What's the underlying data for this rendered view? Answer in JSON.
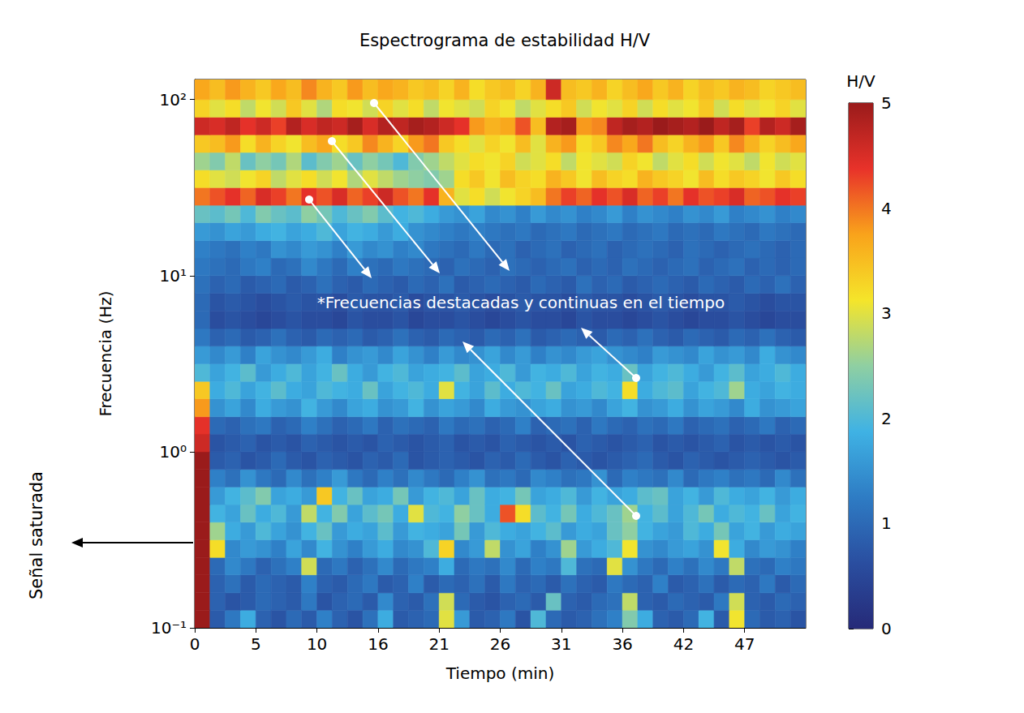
{
  "chart_data": {
    "type": "heatmap",
    "title": "Espectrograma de estabilidad H/V",
    "x_label": "Tiempo (min)",
    "y_label": "Frecuencia (Hz)",
    "log": "y",
    "grid": false,
    "xlim": [
      0,
      52
    ],
    "xticks": [
      0,
      {
        "value": 5.2,
        "label": "5"
      },
      {
        "value": 10.4,
        "label": "10"
      },
      {
        "value": 15.6,
        "label": "16"
      },
      {
        "value": 20.8,
        "label": "21"
      },
      26,
      {
        "value": 31.2,
        "label": "31"
      },
      {
        "value": 36.4,
        "label": "36"
      },
      {
        "value": 41.6,
        "label": "42"
      },
      {
        "value": 46.8,
        "label": "47"
      }
    ],
    "ylim": [
      0.1,
      130
    ],
    "yticks": [
      {
        "value": 0.1,
        "label": "10⁻¹"
      },
      {
        "value": 1,
        "label": "10⁰"
      },
      {
        "value": 10,
        "label": "10¹"
      },
      {
        "value": 100,
        "label": "10²"
      }
    ],
    "time_bins": [
      0,
      1.3,
      2.6,
      3.9,
      5.2,
      6.5,
      7.8,
      9.1,
      10.4,
      11.7,
      13,
      14.3,
      15.6,
      16.9,
      18.2,
      19.5,
      20.8,
      22.1,
      23.4,
      24.7,
      26,
      27.3,
      28.6,
      29.9,
      31.2,
      32.5,
      33.8,
      35.1,
      36.4,
      37.7,
      39,
      40.3,
      41.6,
      42.9,
      44.2,
      45.5,
      46.8,
      48.1,
      49.4,
      50.7,
      52
    ],
    "freq_bins": [
      0.1,
      0.126,
      0.158,
      0.2,
      0.251,
      0.316,
      0.398,
      0.501,
      0.631,
      0.794,
      1,
      1.26,
      1.58,
      2,
      2.51,
      3.16,
      3.98,
      5.01,
      6.31,
      7.94,
      10,
      12.6,
      15.8,
      20,
      25.1,
      31.6,
      39.8,
      50.1,
      63.1,
      79.4,
      100,
      130
    ],
    "cells": [
      [
        5,
        0.8,
        1.2,
        1.8,
        0.9,
        0.7,
        1.0,
        0.8,
        1.3,
        0.9,
        0.7,
        1.1,
        1.8,
        0.8,
        0.9,
        1.0,
        3.0,
        1.6,
        0.8,
        0.9,
        1.2,
        0.7,
        2.0,
        1.0,
        0.8,
        0.9,
        1.1,
        1.3,
        2.4,
        1.8,
        0.9,
        0.8,
        1.0,
        1.9,
        0.8,
        3.1,
        1.0,
        0.8,
        0.9,
        0.7
      ],
      [
        5,
        0.9,
        0.7,
        0.8,
        1.0,
        0.9,
        0.8,
        1.2,
        0.7,
        0.9,
        1.0,
        0.8,
        1.4,
        0.9,
        0.8,
        1.1,
        2.9,
        1.0,
        0.8,
        0.7,
        0.9,
        1.0,
        0.8,
        2.2,
        0.9,
        0.8,
        1.0,
        1.1,
        2.8,
        0.9,
        0.8,
        1.0,
        0.9,
        0.8,
        1.2,
        2.9,
        0.9,
        0.8,
        1.0,
        0.9
      ],
      [
        5,
        0.9,
        1.1,
        0.8,
        1.0,
        0.9,
        0.8,
        1.3,
        0.9,
        0.8,
        1.0,
        1.2,
        0.8,
        0.9,
        1.3,
        0.8,
        1.0,
        0.9,
        1.1,
        0.8,
        1.2,
        0.9,
        1.0,
        0.8,
        1.1,
        0.9,
        0.8,
        1.2,
        1.0,
        0.9,
        1.3,
        0.8,
        0.9,
        1.1,
        0.8,
        1.0,
        0.9,
        1.2,
        0.8,
        1.0
      ],
      [
        5,
        1.0,
        1.4,
        1.2,
        0.9,
        1.1,
        1.3,
        2.9,
        1.0,
        1.2,
        0.9,
        1.1,
        1.4,
        1.0,
        1.2,
        1.3,
        1.8,
        1.0,
        1.2,
        1.1,
        1.4,
        1.0,
        1.3,
        1.2,
        2.0,
        1.1,
        1.0,
        3.0,
        1.5,
        1.2,
        1.0,
        1.3,
        1.1,
        1.4,
        1.2,
        2.8,
        1.1,
        1.0,
        1.3,
        1.2
      ],
      [
        5,
        3.2,
        1.4,
        1.6,
        1.5,
        1.3,
        1.7,
        1.4,
        1.9,
        1.5,
        1.3,
        1.6,
        1.8,
        1.4,
        1.5,
        2.0,
        3.3,
        1.4,
        1.6,
        2.8,
        1.5,
        1.7,
        1.3,
        1.5,
        2.6,
        1.6,
        1.8,
        2.0,
        3.1,
        1.5,
        1.4,
        1.6,
        1.7,
        1.5,
        3.1,
        1.8,
        1.4,
        1.6,
        1.5,
        1.3
      ],
      [
        5,
        2.6,
        1.8,
        1.6,
        2.0,
        1.7,
        1.5,
        1.9,
        2.2,
        1.6,
        1.8,
        1.7,
        2.1,
        1.6,
        1.9,
        1.8,
        1.7,
        2.3,
        1.6,
        2.0,
        1.8,
        1.7,
        1.9,
        2.1,
        1.6,
        1.8,
        1.7,
        2.2,
        2.5,
        1.9,
        1.7,
        1.6,
        2.0,
        1.8,
        2.3,
        1.7,
        1.9,
        1.6,
        1.8,
        1.7
      ],
      [
        5,
        1.9,
        1.7,
        2.2,
        1.8,
        2.0,
        1.6,
        2.8,
        1.9,
        2.4,
        1.7,
        2.1,
        2.3,
        1.8,
        3.0,
        2.0,
        1.9,
        2.5,
        2.2,
        1.8,
        4.2,
        3.2,
        2.1,
        1.9,
        2.3,
        1.8,
        2.0,
        2.2,
        2.6,
        1.9,
        2.1,
        1.7,
        2.0,
        2.3,
        1.8,
        2.0,
        1.9,
        2.2,
        1.7,
        1.9
      ],
      [
        5,
        1.6,
        1.9,
        2.1,
        2.4,
        1.7,
        1.8,
        1.6,
        3.4,
        1.9,
        2.2,
        1.7,
        1.8,
        2.3,
        1.6,
        1.9,
        2.0,
        1.7,
        2.2,
        1.8,
        1.9,
        2.3,
        1.7,
        1.8,
        2.0,
        1.6,
        1.9,
        1.7,
        1.8,
        2.1,
        2.2,
        1.7,
        1.9,
        1.6,
        2.0,
        1.8,
        1.7,
        1.9,
        1.6,
        1.8
      ],
      [
        5,
        1.3,
        1.1,
        1.5,
        1.2,
        1.0,
        1.4,
        1.1,
        1.3,
        1.6,
        1.2,
        1.0,
        1.3,
        1.1,
        1.4,
        1.2,
        1.0,
        1.3,
        1.5,
        1.1,
        1.2,
        1.0,
        1.4,
        1.3,
        1.1,
        1.2,
        1.5,
        1.0,
        1.3,
        1.2,
        1.1,
        1.4,
        1.0,
        1.2,
        1.3,
        1.1,
        1.2,
        1.0,
        1.4,
        1.1
      ],
      [
        5,
        0.8,
        0.9,
        0.7,
        0.8,
        1.0,
        0.8,
        0.7,
        0.9,
        0.8,
        0.7,
        0.9,
        0.8,
        1.0,
        0.7,
        0.8,
        0.9,
        0.8,
        0.7,
        0.9,
        0.8,
        1.0,
        0.8,
        0.7,
        0.9,
        0.8,
        0.7,
        0.8,
        0.9,
        1.0,
        0.8,
        0.7,
        0.9,
        0.8,
        0.7,
        0.8,
        0.9,
        0.8,
        0.7,
        0.8
      ],
      [
        4.6,
        0.7,
        0.8,
        0.9,
        0.7,
        0.8,
        0.7,
        0.9,
        0.8,
        0.7,
        0.8,
        0.7,
        0.9,
        0.8,
        0.7,
        0.8,
        0.9,
        0.7,
        0.8,
        0.7,
        0.9,
        0.8,
        0.7,
        0.8,
        0.7,
        0.9,
        0.8,
        0.7,
        0.8,
        0.9,
        0.7,
        0.8,
        0.7,
        0.8,
        0.9,
        0.7,
        0.8,
        0.7,
        0.8,
        0.7
      ],
      [
        4.4,
        1.0,
        0.9,
        1.1,
        1.2,
        0.9,
        1.0,
        1.3,
        1.1,
        0.9,
        1.0,
        1.2,
        0.9,
        1.1,
        1.0,
        0.9,
        1.2,
        1.0,
        1.1,
        0.9,
        1.0,
        1.3,
        0.9,
        1.0,
        1.1,
        0.9,
        1.2,
        1.0,
        0.9,
        1.1,
        1.0,
        1.2,
        0.9,
        1.0,
        1.1,
        0.9,
        1.0,
        1.2,
        0.9,
        1.0
      ],
      [
        3.8,
        1.5,
        1.7,
        1.4,
        1.8,
        1.6,
        1.5,
        1.9,
        1.6,
        1.4,
        1.7,
        1.8,
        1.5,
        1.6,
        1.9,
        1.5,
        1.7,
        1.6,
        1.4,
        1.8,
        1.6,
        1.5,
        1.7,
        1.8,
        1.5,
        1.6,
        1.4,
        1.7,
        1.9,
        1.5,
        1.6,
        1.8,
        1.5,
        1.7,
        1.6,
        1.4,
        1.8,
        1.5,
        1.6,
        1.7
      ],
      [
        3.4,
        1.8,
        2.0,
        1.7,
        1.9,
        2.1,
        1.8,
        1.7,
        2.0,
        1.9,
        1.8,
        2.2,
        1.7,
        1.9,
        2.0,
        1.8,
        3.0,
        1.9,
        1.7,
        2.1,
        1.8,
        2.0,
        1.9,
        2.2,
        1.7,
        1.8,
        2.0,
        1.9,
        3.2,
        1.8,
        2.0,
        2.1,
        1.7,
        1.9,
        2.0,
        2.6,
        1.8,
        1.7,
        1.9,
        1.8
      ],
      [
        2.0,
        1.7,
        1.9,
        2.1,
        1.6,
        1.8,
        2.0,
        1.7,
        1.9,
        2.2,
        1.8,
        1.6,
        1.9,
        2.0,
        1.7,
        1.8,
        1.9,
        2.1,
        1.7,
        1.8,
        2.0,
        1.6,
        1.9,
        1.8,
        2.0,
        1.7,
        1.9,
        1.8,
        2.2,
        1.7,
        1.9,
        2.0,
        1.8,
        1.6,
        1.9,
        2.1,
        1.7,
        1.8,
        2.0,
        1.8
      ],
      [
        1.6,
        1.4,
        1.6,
        1.3,
        1.7,
        1.5,
        1.4,
        1.6,
        1.8,
        1.3,
        1.5,
        1.6,
        1.4,
        1.7,
        1.5,
        1.3,
        1.6,
        1.4,
        1.5,
        1.7,
        1.4,
        1.6,
        1.3,
        1.5,
        1.4,
        1.6,
        1.7,
        1.5,
        1.4,
        1.3,
        1.6,
        1.5,
        1.4,
        1.7,
        1.5,
        1.6,
        1.4,
        1.8,
        1.5,
        1.4
      ],
      [
        1.2,
        0.9,
        1.0,
        0.8,
        0.9,
        1.1,
        0.9,
        0.8,
        1.0,
        0.9,
        1.0,
        0.8,
        0.9,
        1.1,
        0.9,
        0.8,
        1.0,
        0.9,
        0.8,
        1.0,
        0.9,
        1.1,
        0.8,
        0.9,
        1.0,
        0.9,
        0.8,
        1.0,
        0.9,
        1.1,
        0.9,
        0.8,
        1.0,
        0.9,
        0.8,
        1.0,
        0.9,
        1.1,
        0.9,
        0.8
      ],
      [
        1.0,
        0.6,
        0.7,
        0.6,
        0.5,
        0.6,
        0.7,
        0.6,
        0.6,
        0.5,
        0.7,
        0.6,
        0.6,
        0.7,
        0.5,
        0.6,
        0.6,
        0.7,
        0.6,
        0.5,
        0.6,
        0.7,
        0.6,
        0.6,
        0.5,
        0.7,
        0.6,
        0.6,
        0.5,
        0.6,
        0.7,
        0.6,
        0.5,
        0.6,
        0.6,
        0.7,
        0.6,
        0.5,
        0.6,
        0.6
      ],
      [
        1.0,
        0.7,
        0.8,
        0.7,
        0.6,
        0.7,
        0.8,
        0.7,
        0.7,
        0.6,
        0.8,
        0.7,
        0.7,
        0.8,
        0.6,
        0.7,
        0.7,
        0.8,
        0.7,
        0.6,
        0.7,
        0.8,
        0.7,
        0.7,
        0.6,
        0.8,
        0.7,
        0.7,
        0.6,
        0.7,
        0.8,
        0.7,
        0.6,
        0.7,
        0.7,
        0.8,
        0.7,
        0.6,
        0.7,
        0.7
      ],
      [
        1.1,
        0.9,
        1.0,
        0.8,
        0.9,
        1.0,
        0.8,
        0.9,
        1.1,
        0.9,
        0.8,
        1.0,
        0.9,
        0.8,
        1.0,
        0.9,
        1.1,
        0.8,
        0.9,
        1.0,
        0.9,
        0.8,
        1.0,
        0.9,
        0.8,
        1.1,
        0.9,
        1.0,
        0.8,
        0.9,
        1.0,
        0.9,
        0.8,
        1.0,
        0.9,
        0.8,
        1.0,
        0.9,
        1.1,
        0.9
      ],
      [
        1.2,
        1.1,
        1.0,
        1.2,
        1.3,
        1.0,
        1.1,
        1.4,
        1.2,
        1.0,
        1.3,
        1.1,
        1.0,
        1.2,
        1.1,
        1.0,
        0.9,
        1.1,
        1.0,
        0.9,
        1.1,
        1.0,
        0.9,
        1.0,
        1.1,
        0.9,
        1.0,
        0.9,
        1.1,
        1.0,
        0.9,
        1.0,
        1.1,
        0.9,
        1.0,
        1.1,
        0.9,
        1.0,
        0.9,
        1.0
      ],
      [
        1.3,
        1.2,
        1.1,
        1.3,
        1.2,
        1.5,
        1.4,
        1.6,
        1.5,
        1.3,
        1.6,
        1.4,
        1.5,
        1.3,
        1.4,
        1.2,
        1.1,
        1.0,
        1.2,
        1.0,
        1.1,
        0.9,
        1.0,
        1.1,
        0.9,
        1.0,
        1.1,
        0.9,
        1.0,
        1.1,
        1.0,
        0.9,
        1.1,
        1.0,
        0.9,
        1.0,
        1.1,
        1.0,
        0.9,
        1.0
      ],
      [
        1.6,
        1.5,
        1.7,
        1.6,
        1.8,
        1.9,
        1.7,
        1.8,
        2.0,
        1.7,
        1.9,
        1.8,
        1.6,
        1.8,
        1.5,
        1.4,
        1.3,
        1.2,
        1.3,
        1.2,
        1.1,
        1.2,
        1.0,
        1.1,
        1.2,
        1.0,
        1.1,
        1.2,
        1.0,
        1.1,
        1.2,
        1.0,
        1.1,
        1.0,
        1.2,
        1.1,
        1.0,
        1.2,
        1.1,
        1.0
      ],
      [
        2.2,
        2.1,
        2.3,
        2.0,
        2.4,
        2.2,
        2.1,
        2.5,
        2.3,
        2.0,
        2.2,
        2.4,
        2.1,
        1.9,
        2.0,
        1.8,
        1.6,
        1.5,
        1.7,
        1.4,
        1.5,
        1.3,
        1.6,
        1.4,
        1.5,
        1.3,
        1.4,
        1.6,
        1.3,
        1.5,
        1.4,
        1.3,
        1.5,
        1.4,
        1.6,
        1.3,
        1.4,
        1.5,
        1.3,
        1.4
      ],
      [
        4.0,
        4.2,
        4.4,
        4.1,
        4.5,
        4.3,
        4.0,
        4.4,
        4.2,
        4.5,
        4.1,
        4.3,
        4.6,
        4.2,
        4.0,
        4.4,
        3.6,
        3.0,
        3.2,
        2.9,
        3.1,
        3.3,
        3.5,
        4.0,
        4.3,
        4.1,
        4.4,
        4.2,
        4.5,
        4.1,
        4.3,
        4.0,
        4.4,
        4.2,
        4.3,
        4.5,
        4.1,
        4.2,
        4.4,
        4.3
      ],
      [
        3.2,
        3.0,
        2.9,
        3.1,
        3.3,
        2.8,
        3.0,
        3.2,
        2.9,
        3.1,
        2.7,
        3.0,
        2.8,
        2.6,
        2.5,
        2.4,
        2.6,
        3.2,
        3.4,
        3.1,
        3.5,
        3.3,
        3.2,
        3.6,
        3.4,
        3.1,
        3.5,
        3.3,
        3.2,
        3.6,
        3.4,
        3.3,
        3.1,
        3.5,
        3.2,
        3.4,
        3.3,
        3.1,
        3.4,
        3.2
      ],
      [
        2.6,
        2.4,
        2.8,
        2.2,
        2.5,
        2.3,
        2.7,
        2.1,
        2.4,
        2.6,
        2.2,
        2.5,
        2.3,
        2.0,
        2.4,
        2.6,
        2.8,
        3.0,
        3.2,
        3.1,
        3.3,
        2.9,
        3.0,
        3.2,
        2.8,
        3.1,
        3.0,
        2.9,
        3.3,
        3.1,
        2.8,
        3.0,
        3.2,
        2.9,
        3.1,
        3.0,
        2.8,
        3.1,
        2.9,
        3.0
      ],
      [
        3.4,
        3.5,
        3.8,
        3.2,
        3.6,
        3.3,
        3.1,
        3.5,
        3.7,
        3.2,
        3.4,
        3.9,
        3.6,
        3.3,
        3.8,
        4.0,
        3.4,
        3.2,
        3.0,
        3.3,
        3.1,
        3.5,
        3.0,
        3.6,
        3.8,
        3.2,
        3.4,
        3.9,
        3.7,
        4.0,
        3.5,
        3.3,
        3.6,
        3.8,
        3.4,
        3.9,
        3.6,
        3.3,
        3.5,
        3.7
      ],
      [
        4.6,
        4.5,
        4.7,
        4.4,
        4.6,
        4.3,
        4.8,
        4.5,
        4.7,
        4.6,
        4.9,
        4.5,
        4.8,
        4.7,
        4.9,
        4.8,
        4.6,
        4.4,
        3.8,
        3.6,
        3.7,
        4.2,
        3.5,
        4.8,
        4.9,
        3.8,
        3.9,
        4.7,
        4.9,
        4.8,
        5.0,
        4.9,
        4.8,
        5.0,
        4.7,
        4.9,
        4.3,
        4.8,
        4.6,
        4.9
      ],
      [
        3.3,
        3.0,
        3.2,
        2.8,
        3.1,
        2.9,
        3.4,
        3.0,
        2.7,
        3.2,
        3.1,
        2.9,
        3.3,
        3.0,
        3.2,
        2.8,
        3.1,
        3.0,
        2.9,
        3.3,
        3.1,
        2.8,
        3.0,
        3.2,
        3.4,
        2.9,
        3.1,
        3.0,
        3.3,
        2.9,
        3.2,
        3.0,
        3.1,
        3.4,
        2.9,
        3.2,
        3.0,
        3.1,
        3.3,
        3.0
      ],
      [
        3.7,
        3.5,
        3.8,
        3.6,
        3.4,
        3.7,
        3.5,
        3.9,
        3.6,
        3.4,
        3.8,
        3.5,
        3.7,
        3.6,
        3.4,
        3.5,
        3.3,
        3.6,
        3.2,
        3.4,
        3.5,
        3.3,
        3.6,
        4.6,
        3.5,
        3.4,
        3.6,
        3.3,
        3.5,
        3.7,
        3.4,
        3.6,
        3.3,
        3.5,
        3.4,
        3.6,
        3.5,
        3.3,
        3.4,
        3.5
      ]
    ],
    "colorbar_label": "H/V",
    "colorbar_range": [
      0,
      5
    ],
    "colorbar_ticks": [
      0,
      1,
      2,
      3,
      4,
      5
    ],
    "annotations": [
      "*Frecuencias destacadas y continuas en el tiempo",
      "Señal saturada"
    ]
  }
}
